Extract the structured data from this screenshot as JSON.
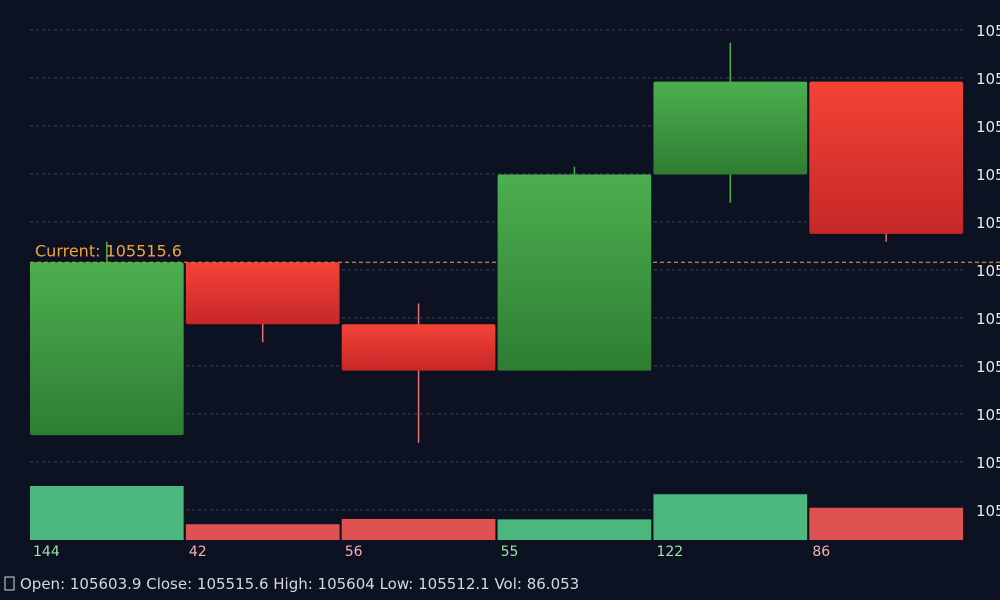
{
  "chart_data": {
    "type": "candlestick",
    "candles": [
      {
        "open": 105508.9,
        "close": 105515.6,
        "high": 105516.4,
        "low": 105508.9,
        "volume": 144
      },
      {
        "open": 105515.6,
        "close": 105513.2,
        "high": 105515.6,
        "low": 105512.5,
        "volume": 42
      },
      {
        "open": 105513.2,
        "close": 105511.4,
        "high": 105514.0,
        "low": 105508.6,
        "volume": 56
      },
      {
        "open": 105511.4,
        "close": 105519.0,
        "high": 105519.3,
        "low": 105511.4,
        "volume": 55
      },
      {
        "open": 105519.0,
        "close": 105522.6,
        "high": 105524.1,
        "low": 105517.9,
        "volume": 122
      },
      {
        "open": 105522.6,
        "close": 105516.7,
        "high": 105522.6,
        "low": 105516.4,
        "volume": 86
      }
    ],
    "y_tick_labels": [
      "105",
      "105",
      "105",
      "105",
      "105",
      "105",
      "105",
      "105",
      "105",
      "105",
      "105"
    ],
    "y_range": [
      105506,
      105524.6
    ],
    "current_price": 105515.6,
    "current_label": "Current: 105515.6",
    "colors": {
      "up": "#3fa34a",
      "down": "#e13a34",
      "up_volume": "#4db87d",
      "down_volume": "#e05252",
      "current_line": "#f2a33a",
      "grid": "#3a4254",
      "background": "#0c1222"
    },
    "grid": true
  },
  "info_bar": {
    "icon": "chart-icon",
    "text": "Open: 105603.9  Close: 105515.6  High: 105604  Low: 105512.1  Vol: 86.053"
  }
}
